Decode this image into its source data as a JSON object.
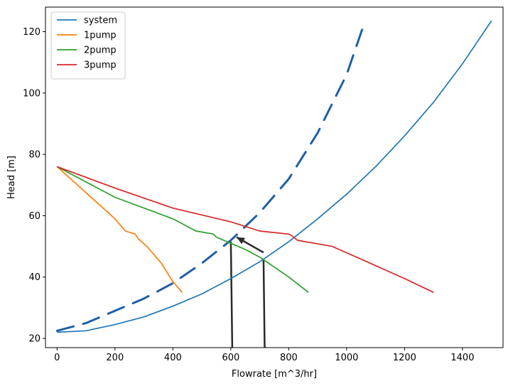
{
  "chart_data": {
    "type": "line",
    "xlabel": "Flowrate [m^3/hr]",
    "ylabel": "Head [m]",
    "xlim": [
      -40,
      1540
    ],
    "ylim": [
      17,
      128
    ],
    "xticks": [
      0,
      200,
      400,
      600,
      800,
      1000,
      1200,
      1400
    ],
    "yticks": [
      20,
      40,
      60,
      80,
      100,
      120
    ],
    "grid": false,
    "legend_position": "top-left",
    "series": [
      {
        "name": "system",
        "color": "#1f77b4",
        "x": [
          0,
          100,
          200,
          300,
          400,
          500,
          600,
          700,
          800,
          900,
          1000,
          1100,
          1200,
          1300,
          1400,
          1500
        ],
        "y": [
          22,
          22.5,
          24.5,
          27,
          30.5,
          34.5,
          39.5,
          45,
          51.5,
          59,
          67,
          76,
          86,
          97,
          109.5,
          123.5
        ]
      },
      {
        "name": "1pump",
        "color": "#ff7f0e",
        "x": [
          0,
          100,
          200,
          236,
          270,
          280,
          310,
          360,
          400,
          432
        ],
        "y": [
          76,
          67.5,
          59,
          55,
          54,
          52.5,
          50,
          44.5,
          38.5,
          35
        ]
      },
      {
        "name": "2pump",
        "color": "#2ca02c",
        "x": [
          0,
          200,
          400,
          480,
          540,
          550,
          600,
          650,
          700,
          800,
          868
        ],
        "y": [
          76,
          66,
          59,
          55,
          54,
          53,
          51,
          49,
          46.5,
          40,
          35
        ]
      },
      {
        "name": "3pump",
        "color": "#d62728",
        "x": [
          0,
          200,
          400,
          600,
          700,
          800,
          810,
          830,
          950,
          1070,
          1200,
          1300
        ],
        "y": [
          76,
          69,
          62.5,
          58,
          55,
          54,
          53.5,
          52,
          50,
          45,
          39.5,
          35
        ]
      }
    ],
    "annotations": [
      {
        "type": "dashed-curve",
        "color": "#1f5fa8",
        "x": [
          0,
          100,
          200,
          300,
          400,
          500,
          600,
          700,
          800,
          900,
          1000,
          1060
        ],
        "y": [
          22.5,
          25,
          29,
          33,
          38,
          44.5,
          52,
          61,
          72,
          87,
          106,
          122.5
        ]
      },
      {
        "type": "vertical-line",
        "color": "#2a2a2a",
        "x": [
          600,
          605
        ],
        "y": [
          51.5,
          17
        ]
      },
      {
        "type": "vertical-line",
        "color": "#2a2a2a",
        "x": [
          713,
          717
        ],
        "y": [
          46,
          17
        ]
      },
      {
        "type": "arrow",
        "color": "#2a2a2a",
        "x": [
          713,
          620
        ],
        "y": [
          48,
          53
        ]
      }
    ]
  }
}
